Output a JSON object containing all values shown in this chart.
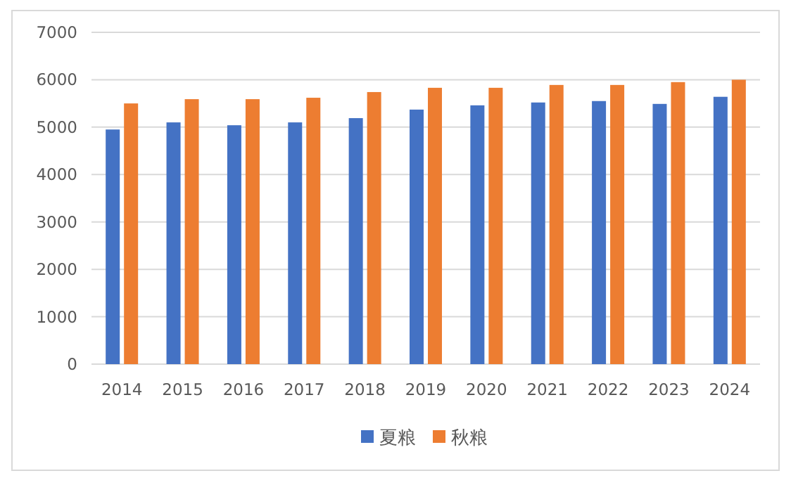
{
  "chart_data": {
    "type": "bar",
    "categories": [
      "2014",
      "2015",
      "2016",
      "2017",
      "2018",
      "2019",
      "2020",
      "2021",
      "2022",
      "2023",
      "2024"
    ],
    "series": [
      {
        "name": "夏粮",
        "color": "#4472c4",
        "values": [
          4950,
          5100,
          5040,
          5100,
          5190,
          5370,
          5460,
          5520,
          5550,
          5490,
          5640
        ]
      },
      {
        "name": "秋粮",
        "color": "#ed7d31",
        "values": [
          5500,
          5590,
          5590,
          5620,
          5740,
          5830,
          5830,
          5890,
          5890,
          5950,
          6000
        ]
      }
    ],
    "ylim": [
      0,
      7000
    ],
    "yticks": [
      0,
      1000,
      2000,
      3000,
      4000,
      5000,
      6000,
      7000
    ],
    "grid": "y",
    "legend": "bottom"
  }
}
